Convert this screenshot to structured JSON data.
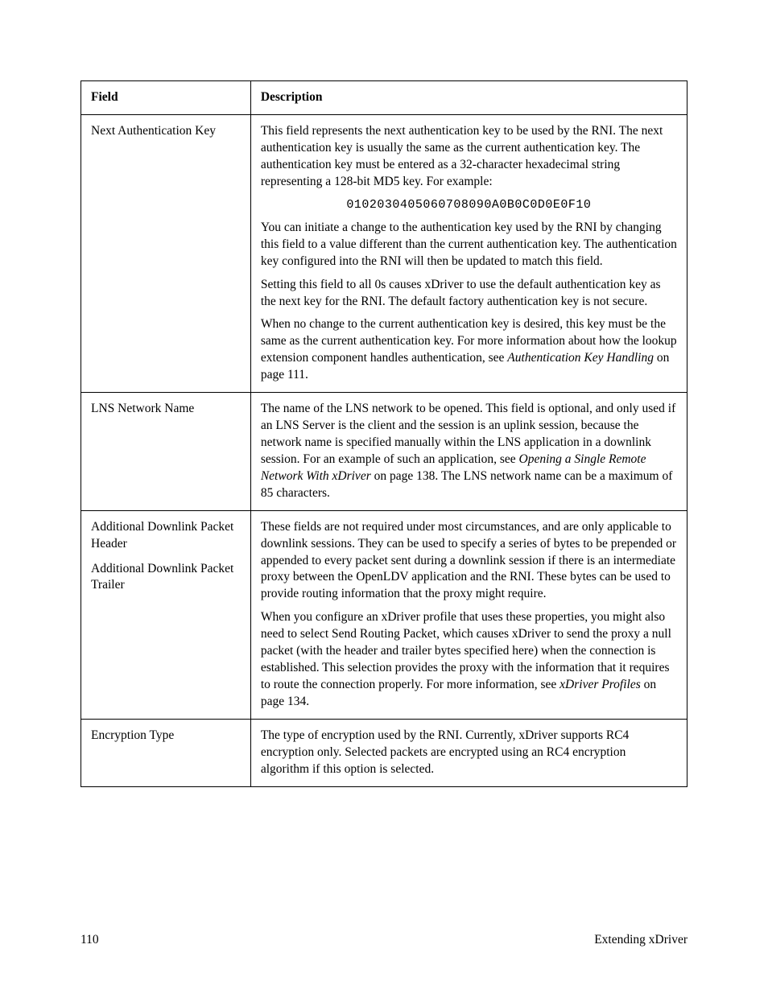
{
  "table": {
    "headers": {
      "field": "Field",
      "description": "Description"
    },
    "rows": [
      {
        "field": "Next Authentication Key",
        "desc": {
          "p1": "This field represents the next authentication key to be used by the RNI.  The next authentication key is usually the same as the current authentication key.  The authentication key must be entered as a 32-character hexadecimal string representing a 128-bit MD5 key.  For example:",
          "code": "0102030405060708090A0B0C0D0E0F10",
          "p2": "You can initiate a change to the authentication key used by the RNI by changing this field to a value different than the current authentication key.  The authentication key configured into the RNI will then be updated to match this field.",
          "p3": "Setting this field to all 0s causes xDriver to use the default authentication key as the next key for the RNI.  The default factory authentication key is not secure.",
          "p4a": "When no change to the current authentication key is desired, this key must be the same as the current authentication key.  For more information about how the lookup extension component handles authentication, see ",
          "p4i": "Authentication Key Handling",
          "p4b": " on page 111."
        }
      },
      {
        "field": "LNS Network Name",
        "desc": {
          "p1a": "The name of the LNS network to be opened.  This field is optional, and only used if an LNS Server is the client and the session is an uplink session, because the network name is specified manually within the LNS application in a downlink session.  For an example of such an application, see ",
          "p1i": "Opening a Single Remote Network With xDriver",
          "p1b": " on page 138.  The LNS network name can be a maximum of 85 characters."
        }
      },
      {
        "field1": "Additional Downlink Packet Header",
        "field2": "Additional Downlink Packet Trailer",
        "desc": {
          "p1": "These fields are not required under most circumstances, and are only applicable to downlink sessions.  They can be used to specify a series of bytes to be prepended or appended to every packet sent during a downlink session if there is an intermediate proxy between the OpenLDV application and the RNI.  These bytes can be used to provide routing information that the proxy might require.",
          "p2a": "When you configure an xDriver profile that uses these properties, you might also need to select Send Routing Packet, which causes xDriver to send the proxy a null packet (with the header and trailer bytes specified here) when the connection is established.  This selection provides the proxy with the information that it requires to route the connection properly.  For more information, see ",
          "p2i": "xDriver Profiles",
          "p2b": " on page 134."
        }
      },
      {
        "field": "Encryption Type",
        "desc": {
          "p1": "The type of encryption used by the RNI.  Currently, xDriver supports RC4 encryption only.  Selected packets are encrypted using an RC4 encryption algorithm if this option is selected."
        }
      }
    ]
  },
  "footer": {
    "page": "110",
    "title": "Extending xDriver"
  }
}
